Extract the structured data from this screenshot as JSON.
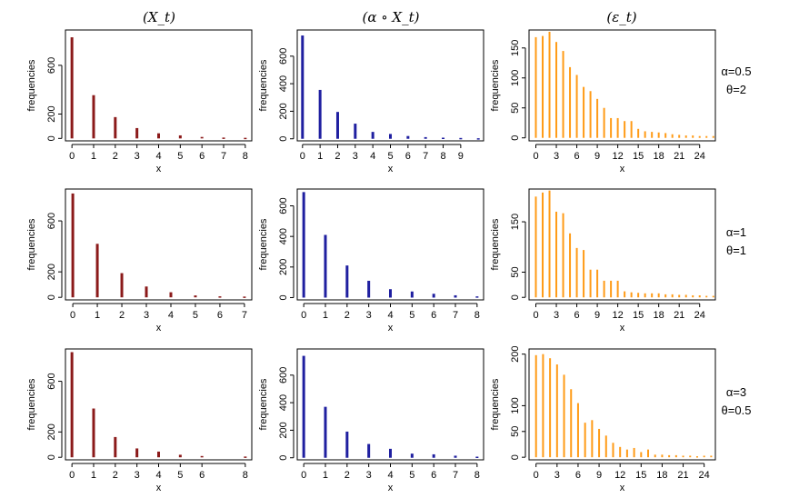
{
  "figure": {
    "column_titles": [
      "(X_t)",
      "(α ∘ X_t)",
      "(ε_t)"
    ],
    "row_labels": [
      {
        "alpha": "α=0.5",
        "theta": "θ=2"
      },
      {
        "alpha": "α=1",
        "theta": "θ=1"
      },
      {
        "alpha": "α=3",
        "theta": "θ=0.5"
      }
    ]
  },
  "colors": {
    "X": "#8b1a1a",
    "alphaX": "#1f1fa0",
    "eps": "#ff9b17"
  },
  "chart_data": [
    {
      "id": "r0c0",
      "type": "bar",
      "series": "X",
      "title": "",
      "xlabel": "x",
      "ylabel": "frequencies",
      "x": [
        0,
        1,
        2,
        3,
        4,
        5,
        6,
        7,
        8
      ],
      "values": [
        830,
        355,
        175,
        85,
        42,
        25,
        12,
        7,
        5
      ],
      "xlim": [
        -0.3,
        8.3
      ],
      "ylim": [
        -20,
        890
      ],
      "xticks": [
        0,
        1,
        2,
        3,
        4,
        5,
        6,
        7,
        8
      ],
      "yticks": [
        0,
        200,
        600
      ]
    },
    {
      "id": "r0c1",
      "type": "bar",
      "series": "alphaX",
      "title": "",
      "xlabel": "x",
      "ylabel": "frequencies",
      "x": [
        0,
        1,
        2,
        3,
        4,
        5,
        6,
        7,
        8,
        9,
        10
      ],
      "values": [
        750,
        355,
        195,
        110,
        50,
        35,
        20,
        12,
        8,
        6,
        4
      ],
      "xlim": [
        -0.3,
        10.3
      ],
      "ylim": [
        -15,
        790
      ],
      "xticks": [
        0,
        1,
        2,
        3,
        4,
        5,
        6,
        7,
        8,
        9
      ],
      "yticks": [
        0,
        200,
        400,
        600
      ]
    },
    {
      "id": "r0c2",
      "type": "bar",
      "series": "eps",
      "title": "",
      "xlabel": "x",
      "ylabel": "frequencies",
      "x": [
        0,
        1,
        2,
        3,
        4,
        5,
        6,
        7,
        8,
        9,
        10,
        11,
        12,
        13,
        14,
        15,
        16,
        17,
        18,
        19,
        20,
        21,
        22,
        23,
        24,
        25,
        26
      ],
      "values": [
        168,
        170,
        177,
        160,
        145,
        118,
        105,
        85,
        78,
        65,
        50,
        33,
        33,
        28,
        28,
        15,
        11,
        10,
        9,
        8,
        6,
        5,
        4,
        4,
        3,
        3,
        3
      ],
      "xlim": [
        -1,
        26.3
      ],
      "ylim": [
        -5,
        180
      ],
      "xticks": [
        0,
        3,
        6,
        9,
        12,
        15,
        18,
        21,
        24
      ],
      "yticks": [
        0,
        50,
        100,
        150
      ]
    },
    {
      "id": "r1c0",
      "type": "bar",
      "series": "X",
      "title": "",
      "xlabel": "x",
      "ylabel": "frequencies",
      "x": [
        0,
        1,
        2,
        3,
        4,
        5,
        6,
        7
      ],
      "values": [
        815,
        420,
        190,
        85,
        40,
        15,
        8,
        6
      ],
      "xlim": [
        -0.3,
        7.3
      ],
      "ylim": [
        -20,
        850
      ],
      "xticks": [
        0,
        1,
        2,
        3,
        4,
        5,
        6,
        7
      ],
      "yticks": [
        0,
        200,
        600
      ]
    },
    {
      "id": "r1c1",
      "type": "bar",
      "series": "alphaX",
      "title": "",
      "xlabel": "x",
      "ylabel": "frequencies",
      "x": [
        0,
        1,
        2,
        3,
        4,
        5,
        6,
        7,
        8
      ],
      "values": [
        690,
        410,
        210,
        110,
        55,
        40,
        25,
        15,
        8
      ],
      "xlim": [
        -0.3,
        8.3
      ],
      "ylim": [
        -15,
        710
      ],
      "xticks": [
        0,
        1,
        2,
        3,
        4,
        5,
        6,
        7,
        8
      ],
      "yticks": [
        0,
        200,
        400,
        600
      ]
    },
    {
      "id": "r1c2",
      "type": "bar",
      "series": "eps",
      "title": "",
      "xlabel": "x",
      "ylabel": "frequencies",
      "x": [
        0,
        1,
        2,
        3,
        4,
        5,
        6,
        7,
        8,
        9,
        10,
        11,
        12,
        13,
        14,
        15,
        16,
        17,
        18,
        19,
        20,
        21,
        22,
        23,
        24,
        25,
        26
      ],
      "values": [
        200,
        208,
        212,
        170,
        167,
        127,
        98,
        94,
        55,
        55,
        33,
        33,
        33,
        12,
        10,
        9,
        8,
        8,
        8,
        6,
        6,
        5,
        5,
        4,
        4,
        3,
        3
      ],
      "xlim": [
        -1,
        26.3
      ],
      "ylim": [
        -5,
        215
      ],
      "xticks": [
        0,
        3,
        6,
        9,
        12,
        15,
        18,
        21,
        24
      ],
      "yticks": [
        0,
        50,
        150
      ]
    },
    {
      "id": "r2c0",
      "type": "bar",
      "series": "X",
      "title": "",
      "xlabel": "x",
      "ylabel": "frequencies",
      "x": [
        0,
        1,
        2,
        3,
        4,
        5,
        6,
        8
      ],
      "values": [
        830,
        385,
        160,
        70,
        45,
        20,
        10,
        6
      ],
      "xlim": [
        -0.3,
        8.3
      ],
      "ylim": [
        -20,
        855
      ],
      "xticks": [
        0,
        1,
        2,
        3,
        4,
        5,
        6,
        8
      ],
      "yticks": [
        0,
        200,
        600
      ]
    },
    {
      "id": "r2c1",
      "type": "bar",
      "series": "alphaX",
      "title": "",
      "xlabel": "x",
      "ylabel": "frequencies",
      "x": [
        0,
        1,
        2,
        3,
        4,
        5,
        6,
        7,
        8
      ],
      "values": [
        740,
        370,
        190,
        100,
        65,
        30,
        25,
        15,
        8
      ],
      "xlim": [
        -0.3,
        8.3
      ],
      "ylim": [
        -15,
        790
      ],
      "xticks": [
        0,
        1,
        2,
        3,
        4,
        5,
        6,
        7,
        8
      ],
      "yticks": [
        0,
        200,
        400,
        600
      ]
    },
    {
      "id": "r2c2",
      "type": "bar",
      "series": "eps",
      "title": "",
      "xlabel": "x",
      "ylabel": "frequencies",
      "x": [
        0,
        1,
        2,
        3,
        4,
        5,
        6,
        7,
        8,
        9,
        10,
        11,
        12,
        13,
        14,
        15,
        16,
        17,
        18,
        19,
        20,
        21,
        22,
        23,
        24,
        25
      ],
      "values": [
        198,
        200,
        192,
        180,
        160,
        132,
        105,
        67,
        72,
        55,
        42,
        28,
        20,
        15,
        18,
        10,
        15,
        5,
        5,
        4,
        4,
        3,
        3,
        2,
        3,
        3
      ],
      "xlim": [
        -1,
        25.6
      ],
      "ylim": [
        -5,
        210
      ],
      "xticks": [
        0,
        3,
        6,
        9,
        12,
        15,
        18,
        21,
        24
      ],
      "yticks": [
        0,
        50,
        100,
        200
      ]
    }
  ]
}
